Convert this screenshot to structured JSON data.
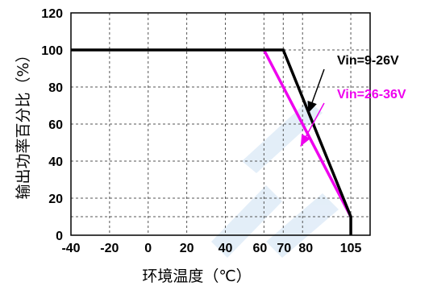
{
  "chart_data": {
    "type": "line",
    "title": "",
    "xlabel": "环境温度（℃）",
    "ylabel": "输出功率百分比（%）",
    "xlim": [
      -40,
      115
    ],
    "ylim": [
      0,
      120
    ],
    "x_ticks": [
      -40,
      -20,
      0,
      20,
      40,
      60,
      70,
      80,
      105
    ],
    "y_ticks": [
      0,
      20,
      40,
      60,
      80,
      100,
      120
    ],
    "grid": true,
    "grid_style": "dashed",
    "legend": "none",
    "series": [
      {
        "name": "Vin=9-26V",
        "color": "#000000",
        "x": [
          -40,
          70,
          105,
          105
        ],
        "y": [
          100,
          100,
          10,
          0
        ]
      },
      {
        "name": "Vin=26-36V",
        "color": "#ee00ee",
        "x": [
          60,
          105
        ],
        "y": [
          100,
          10
        ]
      }
    ],
    "annotations": [
      {
        "text": "Vin=9-26V",
        "color": "#000000",
        "anchor": "left",
        "points_to": {
          "x": 83,
          "y": 66
        }
      },
      {
        "text": "Vin=26-36V",
        "color": "#ee00ee",
        "anchor": "left",
        "points_to": {
          "x": 79,
          "y": 48
        }
      }
    ]
  }
}
